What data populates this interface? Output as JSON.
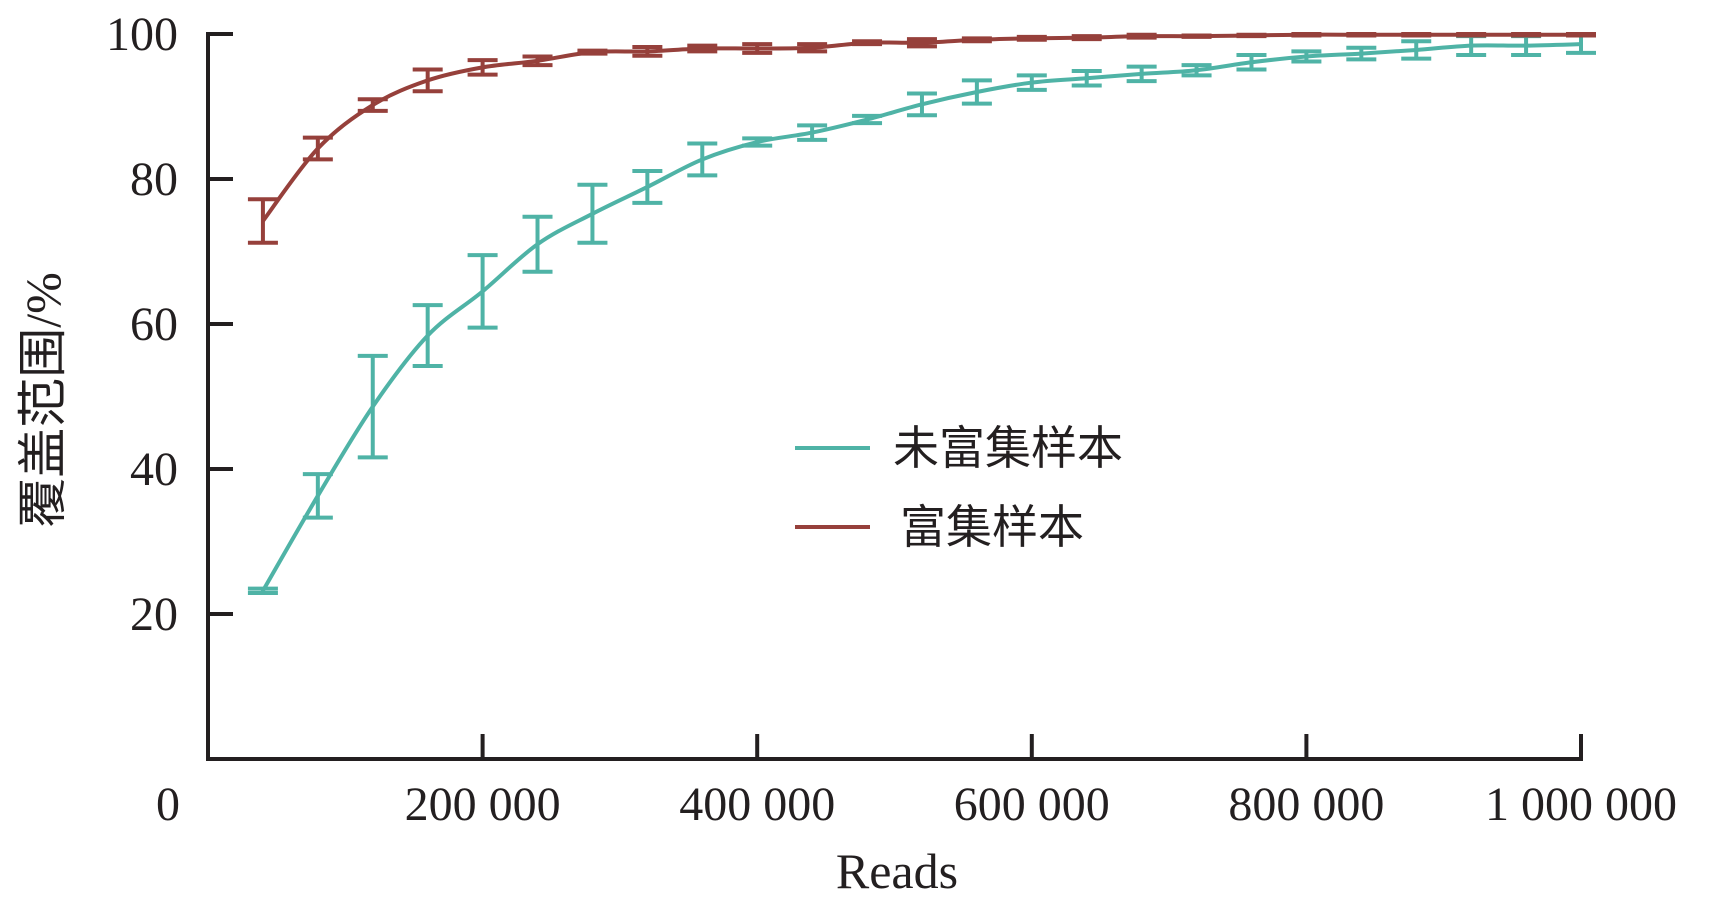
{
  "chart_data": {
    "type": "line",
    "xlabel": "Reads",
    "ylabel": "覆盖范围/%",
    "xlim": [
      0,
      1000000
    ],
    "ylim": [
      0,
      100
    ],
    "x_ticks": [
      0,
      200000,
      400000,
      600000,
      800000,
      1000000
    ],
    "x_tick_labels": [
      "0",
      "200 000",
      "400 000",
      "600 000",
      "800 000",
      "1 000 000"
    ],
    "y_ticks": [
      20,
      40,
      60,
      80,
      100
    ],
    "y_tick_labels": [
      "20",
      "40",
      "60",
      "80",
      "100"
    ],
    "grid": false,
    "legend_position": "center",
    "x": [
      40000,
      80000,
      120000,
      160000,
      200000,
      240000,
      280000,
      320000,
      360000,
      400000,
      440000,
      480000,
      520000,
      560000,
      600000,
      640000,
      680000,
      720000,
      760000,
      800000,
      840000,
      880000,
      920000,
      960000,
      1000000
    ],
    "series": [
      {
        "name": "未富集样本",
        "color": "#4fb3a6",
        "values": [
          23.2,
          36.3,
          48.6,
          58.4,
          64.5,
          71.0,
          75.2,
          78.9,
          82.7,
          85.1,
          86.4,
          88.2,
          90.3,
          92.0,
          93.3,
          93.9,
          94.5,
          95.0,
          96.1,
          96.9,
          97.3,
          97.8,
          98.4,
          98.4,
          98.6
        ],
        "errors": [
          0.3,
          3.0,
          7.0,
          4.2,
          5.0,
          3.8,
          4.0,
          2.2,
          2.2,
          0.5,
          1.0,
          0.5,
          1.5,
          1.6,
          1.0,
          1.0,
          1.0,
          0.7,
          1.0,
          0.7,
          0.8,
          1.2,
          1.3,
          1.3,
          1.2
        ]
      },
      {
        "name": "富集样本",
        "color": "#96403b",
        "values": [
          74.2,
          84.2,
          90.2,
          93.6,
          95.4,
          96.3,
          97.5,
          97.6,
          98.0,
          98.0,
          98.1,
          98.8,
          98.8,
          99.2,
          99.4,
          99.5,
          99.7,
          99.7,
          99.8,
          99.9,
          99.9,
          99.9,
          99.9,
          99.9,
          99.9
        ],
        "errors": [
          3.0,
          1.5,
          0.8,
          1.5,
          1.0,
          0.6,
          0.2,
          0.6,
          0.4,
          0.6,
          0.5,
          0.2,
          0.5,
          0.2,
          0.2,
          0.2,
          0.2,
          0.1,
          0.1,
          0.1,
          0.1,
          0.1,
          0.1,
          0.1,
          0.1
        ]
      }
    ]
  }
}
